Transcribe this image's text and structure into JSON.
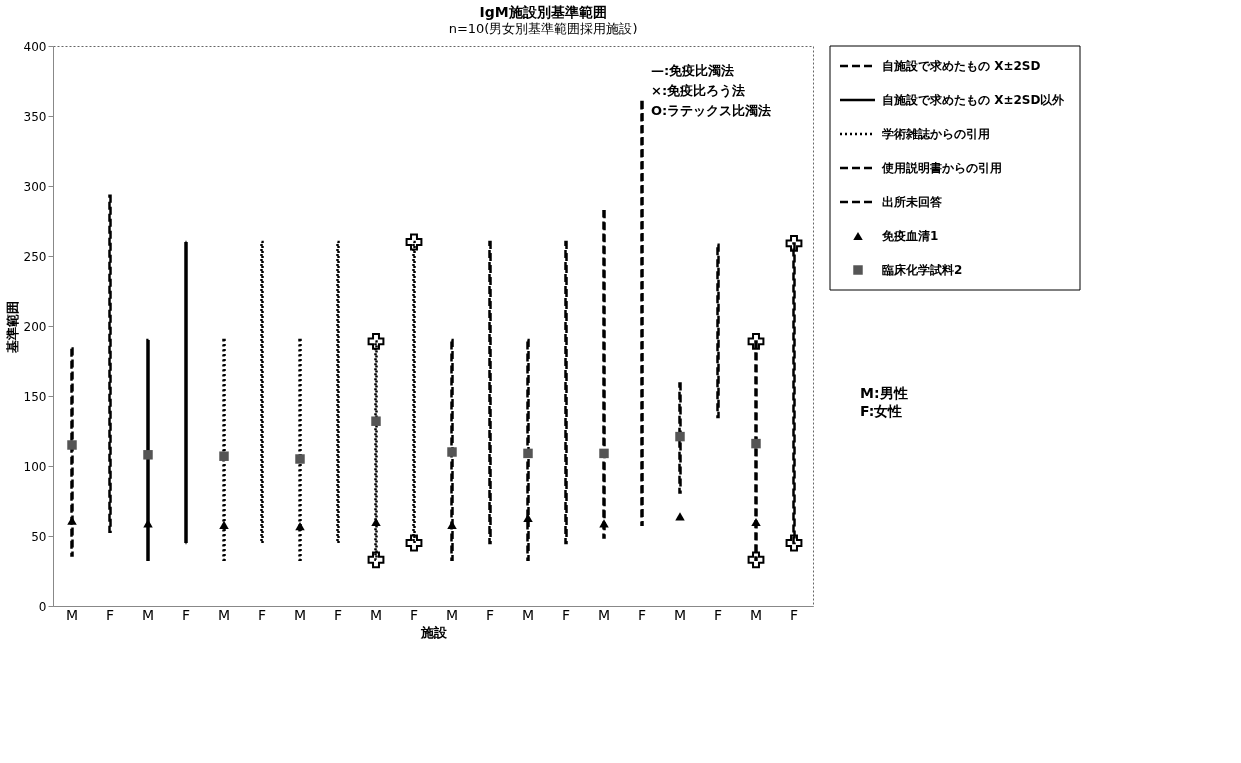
{
  "chart_data": {
    "type": "bar",
    "title": "IgM施設別基準範囲",
    "subtitle": "n=10(男女別基準範囲採用施設)",
    "xlabel": "施設",
    "ylabel": "基準範囲",
    "categories": [
      "M",
      "F",
      "M",
      "F",
      "M",
      "F",
      "M",
      "F",
      "M",
      "F",
      "M",
      "F",
      "M",
      "F",
      "M",
      "F",
      "M",
      "F",
      "M",
      "F"
    ],
    "ylim": [
      0,
      400
    ],
    "yticks": [
      0,
      50,
      100,
      150,
      200,
      250,
      300,
      350,
      400
    ],
    "grid": false,
    "legend": "right",
    "series": [
      {
        "name": "自施設で求めたもの X±2SD",
        "color": "#000000",
        "line_style": "dashed",
        "base": [
          36,
          53,
          null,
          null,
          null,
          null,
          null,
          null,
          null,
          null,
          null,
          null,
          null,
          null,
          null,
          null,
          null,
          null,
          null,
          null
        ],
        "values": [
          148,
          240,
          null,
          null,
          null,
          null,
          null,
          null,
          null,
          null,
          null,
          null,
          null,
          null,
          null,
          null,
          null,
          null,
          null,
          null
        ]
      },
      {
        "name": "自施設で求めたもの X±2SD以外",
        "color": "#000000",
        "line_style": "solid",
        "base": [
          null,
          null,
          33,
          45,
          null,
          null,
          null,
          null,
          null,
          null,
          null,
          null,
          null,
          null,
          null,
          null,
          null,
          null,
          null,
          null
        ],
        "values": [
          null,
          null,
          157,
          215,
          null,
          null,
          null,
          null,
          null,
          null,
          null,
          null,
          null,
          null,
          null,
          null,
          null,
          null,
          null,
          null
        ]
      },
      {
        "name": "学術雑誌からの引用",
        "color": "#000000",
        "line_style": "dotted",
        "base": [
          null,
          null,
          null,
          null,
          33,
          45,
          33,
          45,
          33,
          45,
          null,
          null,
          null,
          null,
          null,
          null,
          null,
          null,
          null,
          null
        ],
        "values": [
          null,
          null,
          null,
          null,
          157,
          215,
          157,
          215,
          156,
          215,
          null,
          null,
          null,
          null,
          null,
          null,
          null,
          null,
          null,
          null
        ]
      },
      {
        "name": "使用説明書からの引用",
        "color": "#000000",
        "line_style": "dashed",
        "base": [
          null,
          null,
          null,
          null,
          null,
          null,
          null,
          null,
          null,
          null,
          33,
          45,
          null,
          null,
          null,
          null,
          81,
          135,
          null,
          null
        ],
        "values": [
          null,
          null,
          null,
          null,
          null,
          null,
          null,
          null,
          null,
          null,
          157,
          215,
          null,
          null,
          null,
          null,
          78,
          123,
          null,
          null
        ]
      },
      {
        "name": "出所未回答",
        "color": "#000000",
        "line_style": "dashed",
        "base": [
          null,
          null,
          null,
          null,
          null,
          null,
          null,
          null,
          null,
          null,
          null,
          null,
          33,
          45,
          49,
          58,
          null,
          null,
          33,
          45
        ],
        "values": [
          null,
          null,
          null,
          null,
          null,
          null,
          null,
          null,
          null,
          null,
          null,
          null,
          157,
          215,
          233,
          302,
          null,
          null,
          156,
          214
        ]
      },
      {
        "name": "免疫血清1",
        "type": "scatter",
        "marker": "triangle",
        "color": "#000000",
        "values": [
          61,
          null,
          59,
          null,
          58,
          null,
          57,
          null,
          60,
          null,
          58,
          null,
          63,
          null,
          59,
          null,
          64,
          null,
          60,
          null
        ]
      },
      {
        "name": "臨床化学試料2",
        "type": "scatter",
        "marker": "square",
        "color": "#555555",
        "values": [
          115,
          null,
          108,
          null,
          107,
          null,
          105,
          null,
          132,
          null,
          110,
          null,
          109,
          null,
          109,
          null,
          121,
          null,
          116,
          null
        ]
      },
      {
        "type": "scatter",
        "marker": "cross",
        "color": "#000000",
        "values": [
          null,
          null,
          null,
          null,
          null,
          null,
          null,
          null,
          189,
          260,
          null,
          null,
          null,
          null,
          null,
          null,
          null,
          null,
          189,
          259
        ]
      },
      {
        "type": "scatter",
        "marker": "cross",
        "color": "#000000",
        "values": [
          null,
          null,
          null,
          null,
          null,
          null,
          null,
          null,
          33,
          45,
          null,
          null,
          null,
          null,
          null,
          null,
          null,
          null,
          33,
          45
        ]
      }
    ],
    "annotations": [
      "—:免疫比濁法",
      "×:免疫比ろう法",
      "O:ラテックス比濁法",
      "M:男性",
      "F:女性"
    ]
  }
}
